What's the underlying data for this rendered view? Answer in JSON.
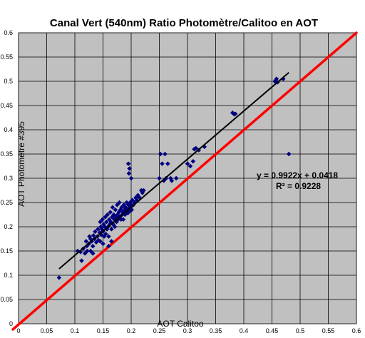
{
  "chart_data": {
    "type": "scatter",
    "title": "Canal Vert (540nm) Ratio Photomètre/Calitoo  en AOT",
    "xlabel": "AOT Calitoo",
    "ylabel": "AOT Photomètre #395",
    "xlim": [
      0,
      0.6
    ],
    "ylim": [
      0,
      0.6
    ],
    "xticks": [
      "0",
      "0.05",
      "0.1",
      "0.15",
      "0.2",
      "0.25",
      "0.3",
      "0.35",
      "0.4",
      "0.45",
      "0.5",
      "0.55",
      "0.6"
    ],
    "yticks": [
      "0",
      "0.05",
      "0.1",
      "0.15",
      "0.2",
      "0.25",
      "0.3",
      "0.35",
      "0.4",
      "0.45",
      "0.5",
      "0.55",
      "0.6"
    ],
    "grid": true,
    "background": "#c0c0c0",
    "point_color": "#000080",
    "trendline": {
      "equation": "y = 0.9922x + 0.0418",
      "r2": "R² = 0.9228",
      "slope": 0.9922,
      "intercept": 0.0418,
      "x_range": [
        0.072,
        0.48
      ],
      "color": "#000000"
    },
    "reference_line": {
      "from": [
        0,
        0
      ],
      "to": [
        0.6,
        0.6
      ],
      "color": "#ff0000"
    },
    "series": [
      {
        "points": [
          [
            0.072,
            0.095
          ],
          [
            0.105,
            0.15
          ],
          [
            0.11,
            0.148
          ],
          [
            0.112,
            0.13
          ],
          [
            0.115,
            0.155
          ],
          [
            0.118,
            0.145
          ],
          [
            0.12,
            0.17
          ],
          [
            0.121,
            0.16
          ],
          [
            0.122,
            0.15
          ],
          [
            0.125,
            0.165
          ],
          [
            0.126,
            0.18
          ],
          [
            0.128,
            0.175
          ],
          [
            0.13,
            0.17
          ],
          [
            0.132,
            0.16
          ],
          [
            0.133,
            0.182
          ],
          [
            0.135,
            0.175
          ],
          [
            0.136,
            0.19
          ],
          [
            0.138,
            0.168
          ],
          [
            0.14,
            0.18
          ],
          [
            0.141,
            0.195
          ],
          [
            0.142,
            0.172
          ],
          [
            0.144,
            0.188
          ],
          [
            0.145,
            0.21
          ],
          [
            0.146,
            0.2
          ],
          [
            0.147,
            0.183
          ],
          [
            0.148,
            0.195
          ],
          [
            0.149,
            0.215
          ],
          [
            0.15,
            0.19
          ],
          [
            0.151,
            0.205
          ],
          [
            0.152,
            0.18
          ],
          [
            0.153,
            0.2
          ],
          [
            0.154,
            0.22
          ],
          [
            0.155,
            0.185
          ],
          [
            0.156,
            0.21
          ],
          [
            0.157,
            0.195
          ],
          [
            0.158,
            0.225
          ],
          [
            0.159,
            0.2
          ],
          [
            0.16,
            0.18
          ],
          [
            0.161,
            0.215
          ],
          [
            0.162,
            0.205
          ],
          [
            0.163,
            0.23
          ],
          [
            0.164,
            0.21
          ],
          [
            0.165,
            0.195
          ],
          [
            0.166,
            0.22
          ],
          [
            0.167,
            0.24
          ],
          [
            0.168,
            0.205
          ],
          [
            0.169,
            0.225
          ],
          [
            0.17,
            0.215
          ],
          [
            0.171,
            0.2
          ],
          [
            0.172,
            0.235
          ],
          [
            0.173,
            0.22
          ],
          [
            0.174,
            0.21
          ],
          [
            0.175,
            0.245
          ],
          [
            0.176,
            0.225
          ],
          [
            0.177,
            0.215
          ],
          [
            0.178,
            0.23
          ],
          [
            0.179,
            0.25
          ],
          [
            0.18,
            0.22
          ],
          [
            0.181,
            0.235
          ],
          [
            0.182,
            0.215
          ],
          [
            0.183,
            0.24
          ],
          [
            0.184,
            0.225
          ],
          [
            0.185,
            0.23
          ],
          [
            0.186,
            0.215
          ],
          [
            0.187,
            0.245
          ],
          [
            0.188,
            0.235
          ],
          [
            0.189,
            0.225
          ],
          [
            0.19,
            0.24
          ],
          [
            0.191,
            0.23
          ],
          [
            0.192,
            0.25
          ],
          [
            0.193,
            0.235
          ],
          [
            0.194,
            0.228
          ],
          [
            0.195,
            0.245
          ],
          [
            0.196,
            0.238
          ],
          [
            0.197,
            0.232
          ],
          [
            0.198,
            0.25
          ],
          [
            0.199,
            0.24
          ],
          [
            0.2,
            0.245
          ],
          [
            0.201,
            0.235
          ],
          [
            0.202,
            0.255
          ],
          [
            0.204,
            0.245
          ],
          [
            0.206,
            0.25
          ],
          [
            0.208,
            0.26
          ],
          [
            0.21,
            0.255
          ],
          [
            0.212,
            0.265
          ],
          [
            0.215,
            0.26
          ],
          [
            0.218,
            0.275
          ],
          [
            0.22,
            0.27
          ],
          [
            0.222,
            0.275
          ],
          [
            0.195,
            0.33
          ],
          [
            0.197,
            0.32
          ],
          [
            0.196,
            0.31
          ],
          [
            0.2,
            0.3
          ],
          [
            0.16,
            0.16
          ],
          [
            0.165,
            0.17
          ],
          [
            0.145,
            0.17
          ],
          [
            0.15,
            0.165
          ],
          [
            0.128,
            0.15
          ],
          [
            0.132,
            0.145
          ],
          [
            0.25,
            0.3
          ],
          [
            0.252,
            0.35
          ],
          [
            0.255,
            0.33
          ],
          [
            0.258,
            0.295
          ],
          [
            0.26,
            0.35
          ],
          [
            0.262,
            0.3
          ],
          [
            0.265,
            0.33
          ],
          [
            0.27,
            0.3
          ],
          [
            0.272,
            0.295
          ],
          [
            0.28,
            0.3
          ],
          [
            0.3,
            0.33
          ],
          [
            0.305,
            0.325
          ],
          [
            0.31,
            0.335
          ],
          [
            0.312,
            0.36
          ],
          [
            0.315,
            0.362
          ],
          [
            0.32,
            0.358
          ],
          [
            0.33,
            0.365
          ],
          [
            0.38,
            0.435
          ],
          [
            0.383,
            0.432
          ],
          [
            0.385,
            0.433
          ],
          [
            0.455,
            0.5
          ],
          [
            0.458,
            0.505
          ],
          [
            0.46,
            0.498
          ],
          [
            0.47,
            0.505
          ],
          [
            0.48,
            0.35
          ]
        ]
      }
    ]
  }
}
